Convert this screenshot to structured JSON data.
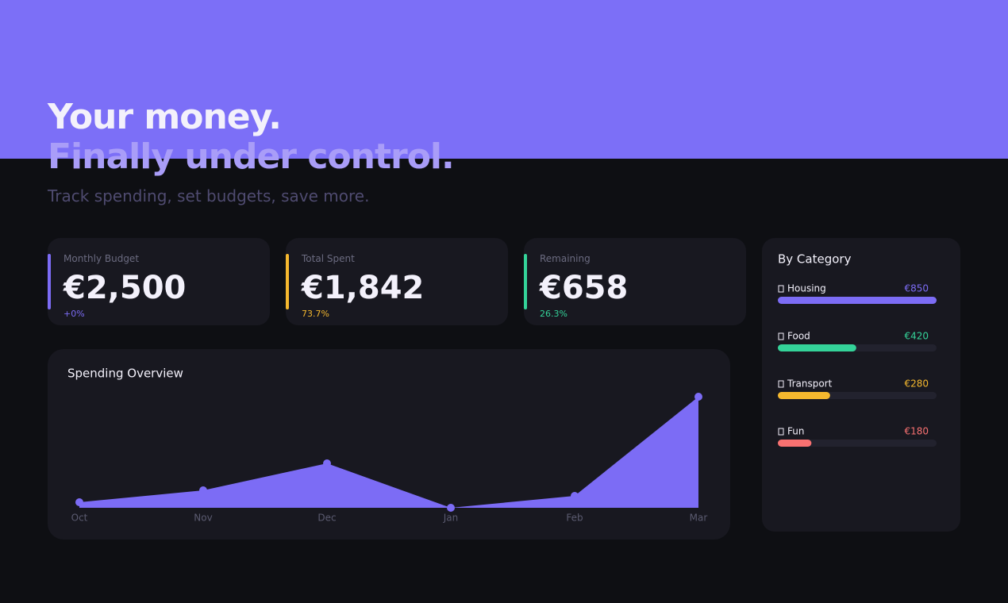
{
  "header": {
    "title": "Your money.",
    "title_accent": "Finally under control.",
    "subtitle": "Track spending, set budgets, save more."
  },
  "stats": [
    {
      "label": "Monthly Budget",
      "value": "€2,500",
      "change": "+0%",
      "color": "#7c6cf5"
    },
    {
      "label": "Total Spent",
      "value": "€1,842",
      "change": "73.7%",
      "color": "#f5b82e"
    },
    {
      "label": "Remaining",
      "value": "€658",
      "change": "26.3%",
      "color": "#34d399"
    }
  ],
  "chart_data": [
    {
      "type": "area",
      "title": "Spending Overview",
      "categories": [
        "Oct",
        "Nov",
        "Dec",
        "Jan",
        "Feb",
        "Mar"
      ],
      "values": [
        7,
        22,
        56,
        0,
        15,
        140
      ],
      "ylim": [
        0,
        140
      ],
      "color": "#7c6cf5"
    },
    {
      "type": "hbar",
      "title": "By Category",
      "categories": [
        "Housing",
        "Food",
        "Transport",
        "Fun"
      ],
      "values": [
        850,
        420,
        280,
        180
      ],
      "value_labels": [
        "€850",
        "€420",
        "€280",
        "€180"
      ],
      "colors": [
        "#7c6cf5",
        "#34d399",
        "#f5b82e",
        "#f87171"
      ],
      "xlim": [
        0,
        850
      ]
    }
  ]
}
